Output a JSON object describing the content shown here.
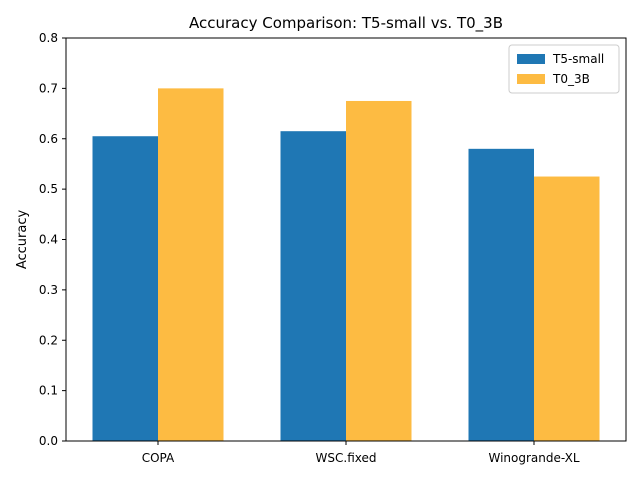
{
  "chart_data": {
    "type": "bar",
    "title": "Accuracy Comparison: T5-small vs. T0_3B",
    "xlabel": "",
    "ylabel": "Accuracy",
    "categories": [
      "COPA",
      "WSC.fixed",
      "Winogrande-XL"
    ],
    "series": [
      {
        "name": "T5-small",
        "values": [
          0.605,
          0.615,
          0.58
        ],
        "color": "#1f77b4"
      },
      {
        "name": "T0_3B",
        "values": [
          0.7,
          0.675,
          0.525
        ],
        "color": "#fdbb42"
      }
    ],
    "ylim": [
      0,
      0.8
    ],
    "yticks": [
      "0.0",
      "0.1",
      "0.2",
      "0.3",
      "0.4",
      "0.5",
      "0.6",
      "0.7",
      "0.8"
    ],
    "grid": false,
    "legend": "top-right"
  }
}
